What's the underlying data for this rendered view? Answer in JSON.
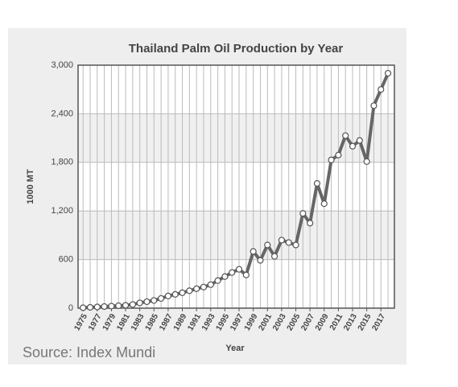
{
  "chart_data": {
    "type": "line",
    "title": "Thailand Palm Oil Production by Year",
    "xlabel": "Year",
    "ylabel": "1000 MT",
    "source": "Source: Index Mundi",
    "x": [
      1975,
      1976,
      1977,
      1978,
      1979,
      1980,
      1981,
      1982,
      1983,
      1984,
      1985,
      1986,
      1987,
      1988,
      1989,
      1990,
      1991,
      1992,
      1993,
      1994,
      1995,
      1996,
      1997,
      1998,
      1999,
      2000,
      2001,
      2002,
      2003,
      2004,
      2005,
      2006,
      2007,
      2008,
      2009,
      2010,
      2011,
      2012,
      2013,
      2014,
      2015,
      2016,
      2017,
      2018
    ],
    "series": [
      {
        "name": "Production",
        "color": "#666666",
        "values": [
          5,
          10,
          15,
          20,
          25,
          30,
          35,
          45,
          65,
          80,
          95,
          120,
          150,
          170,
          190,
          215,
          240,
          260,
          290,
          340,
          390,
          440,
          480,
          410,
          700,
          590,
          780,
          640,
          840,
          810,
          780,
          1170,
          1050,
          1540,
          1290,
          1830,
          1890,
          2130,
          2000,
          2070,
          1810,
          2500,
          2700,
          2900
        ]
      }
    ],
    "xlim": [
      1974.3,
      2018.9
    ],
    "xticks": [
      1975,
      1977,
      1979,
      1981,
      1983,
      1985,
      1987,
      1989,
      1991,
      1993,
      1995,
      1997,
      1999,
      2001,
      2003,
      2005,
      2007,
      2009,
      2011,
      2013,
      2015,
      2017
    ],
    "ylim": [
      0,
      3000
    ],
    "yticks": [
      0,
      600,
      {
        "value": 1200,
        "label": "1,200"
      },
      {
        "value": 1800,
        "label": "1,800"
      },
      {
        "value": 2400,
        "label": "2,400"
      },
      {
        "value": 3000,
        "label": "3,000"
      }
    ],
    "grid": true
  }
}
